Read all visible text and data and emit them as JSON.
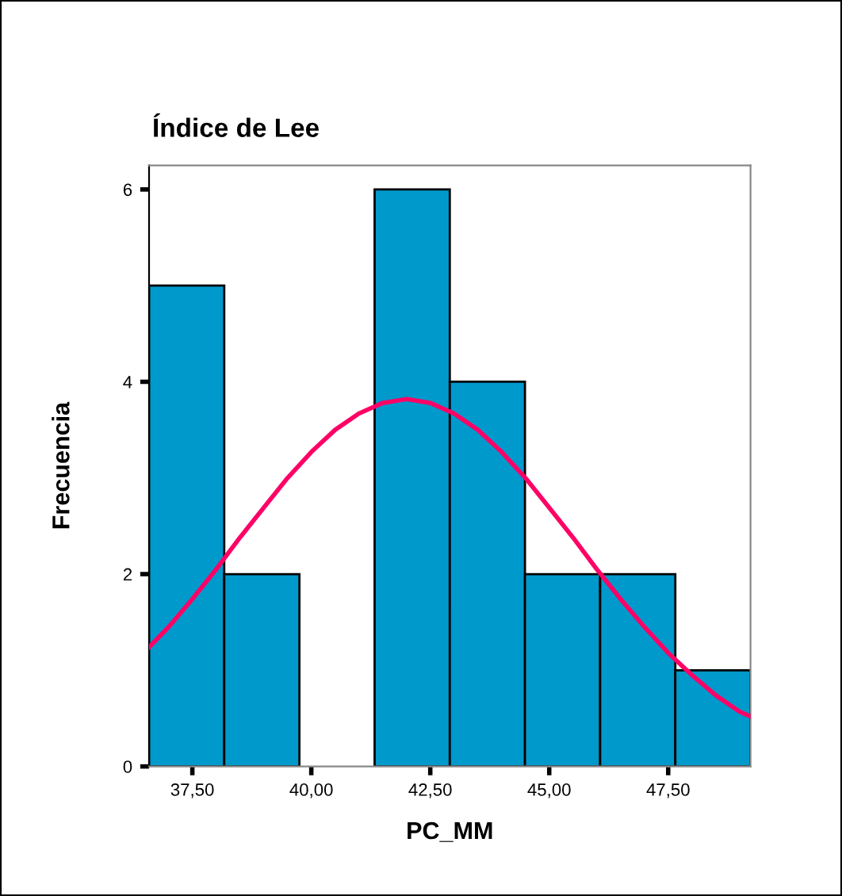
{
  "chart_data": {
    "type": "histogram",
    "title": "Índice de Lee",
    "xlabel": "PC_MM",
    "ylabel": "Frecuencia",
    "bins": [
      36.59,
      38.17,
      39.75,
      41.33,
      42.91,
      44.49,
      46.07,
      47.65,
      49.23
    ],
    "values": [
      5,
      2,
      0,
      6,
      4,
      2,
      2,
      1
    ],
    "color": "#0099cc",
    "series": [
      {
        "type": "line",
        "color": "#ff0066",
        "x": [
          36.59,
          37.0,
          37.5,
          38.0,
          38.5,
          39.0,
          39.5,
          40.0,
          40.5,
          41.0,
          41.5,
          42.0,
          42.5,
          43.0,
          43.5,
          44.0,
          44.5,
          45.0,
          45.5,
          46.0,
          46.5,
          47.0,
          47.5,
          48.0,
          48.5,
          49.0,
          49.23
        ],
        "values": [
          1.24,
          1.45,
          1.74,
          2.05,
          2.38,
          2.69,
          3.0,
          3.27,
          3.5,
          3.67,
          3.78,
          3.82,
          3.78,
          3.67,
          3.5,
          3.27,
          3.0,
          2.69,
          2.38,
          2.05,
          1.74,
          1.45,
          1.18,
          0.95,
          0.74,
          0.57,
          0.52
        ]
      }
    ],
    "xlim": [
      36.59,
      49.23
    ],
    "ylim": [
      0,
      6.25
    ],
    "xticks": [
      {
        "value": 37.5,
        "label": "37,50"
      },
      {
        "value": 40,
        "label": "40,00"
      },
      {
        "value": 42.5,
        "label": "42,50"
      },
      {
        "value": 45,
        "label": "45,00"
      },
      {
        "value": 47.5,
        "label": "47,50"
      }
    ],
    "yticks": [
      0,
      2,
      4,
      6
    ],
    "grid": false,
    "legend": false
  }
}
